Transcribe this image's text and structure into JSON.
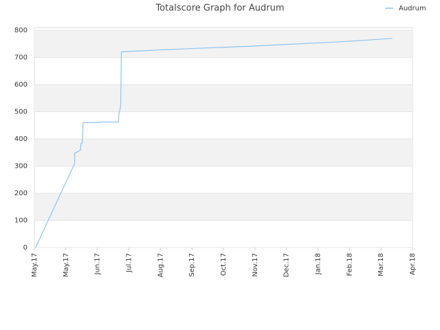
{
  "chart_data": {
    "type": "line",
    "title": "Totalscore Graph for Audrum",
    "x": [
      0.04,
      1.28,
      1.28,
      1.46,
      1.48,
      1.52,
      1.54,
      1.55,
      2.1,
      2.12,
      2.67,
      2.68,
      2.72,
      2.74,
      2.76,
      2.98,
      3.42,
      3.86,
      4.3,
      5.07,
      5.96,
      6.84,
      7.72,
      8.6,
      9.49,
      10.37,
      11.36
    ],
    "series": [
      {
        "name": "Audrum",
        "color": "#8ec3f0",
        "values": [
          0,
          310,
          347,
          358,
          383,
          385,
          440,
          460,
          460,
          462,
          462,
          490,
          510,
          525,
          720,
          722,
          724,
          727,
          729,
          733,
          737,
          741,
          746,
          751,
          756,
          762,
          770
        ]
      }
    ],
    "xlim": [
      0,
      12
    ],
    "xticks": [
      {
        "value": 0,
        "label": "May.17"
      },
      {
        "value": 1,
        "label": "May.17"
      },
      {
        "value": 2,
        "label": "Jun.17"
      },
      {
        "value": 3,
        "label": "Jul.17"
      },
      {
        "value": 4,
        "label": "Aug.17"
      },
      {
        "value": 5,
        "label": "Sep.17"
      },
      {
        "value": 6,
        "label": "Oct.17"
      },
      {
        "value": 7,
        "label": "Nov.17"
      },
      {
        "value": 8,
        "label": "Dec.17"
      },
      {
        "value": 9,
        "label": "Jan.18"
      },
      {
        "value": 10,
        "label": "Feb.18"
      },
      {
        "value": 11,
        "label": "Mar.18"
      },
      {
        "value": 12,
        "label": "Apr.18"
      }
    ],
    "ylim": [
      0,
      810
    ],
    "yticks": [
      0,
      100,
      200,
      300,
      400,
      500,
      600,
      700,
      800
    ],
    "grid": true,
    "legend": "top-right"
  }
}
